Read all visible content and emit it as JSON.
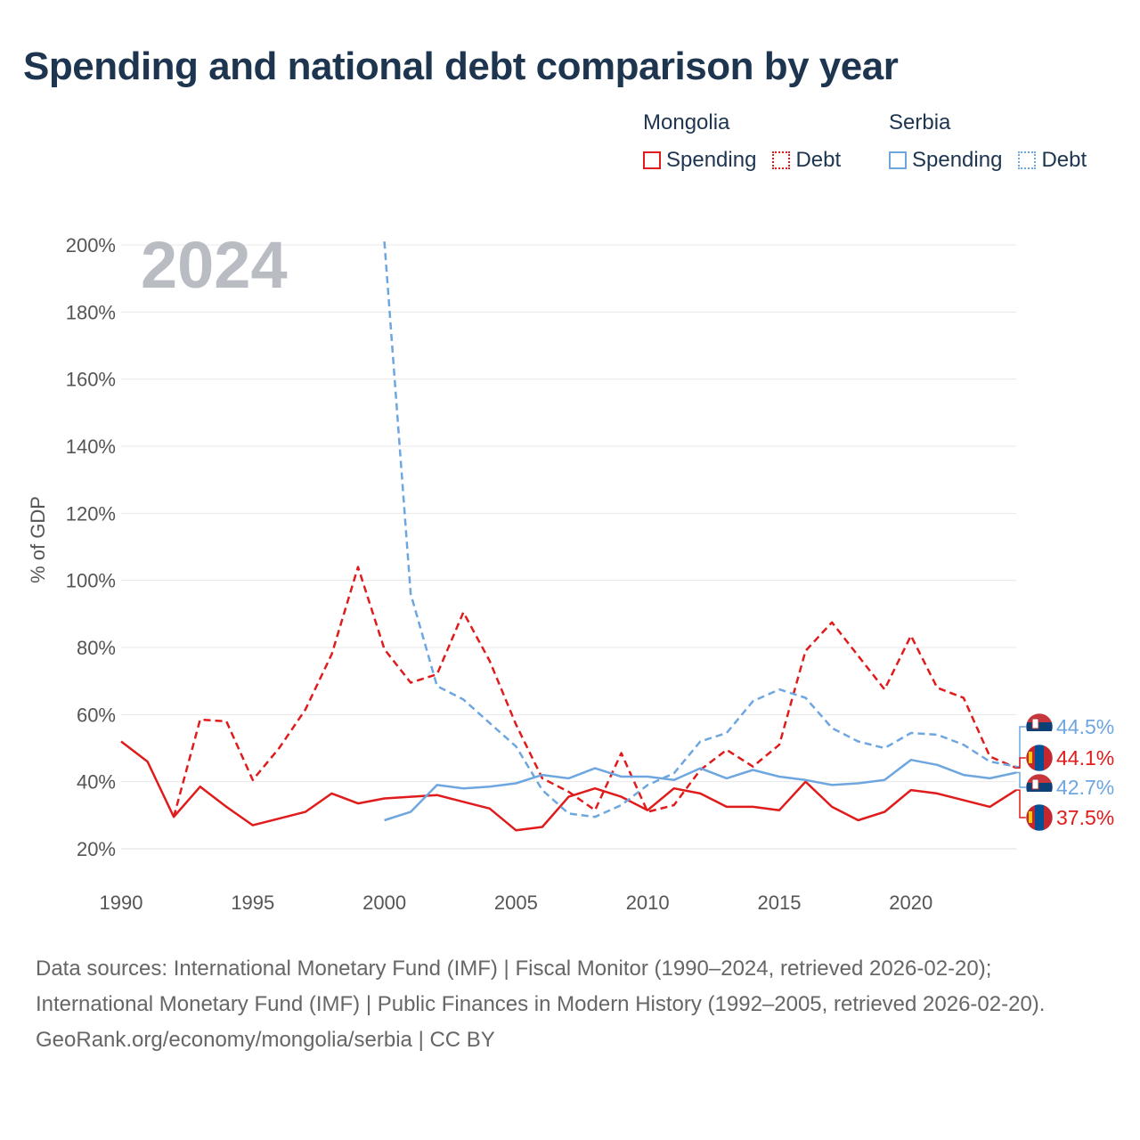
{
  "title": "Spending and national debt comparison by year",
  "legend": {
    "groups": [
      {
        "name": "Mongolia",
        "spending_label": "Spending",
        "debt_label": "Debt",
        "color": "#e01b1b"
      },
      {
        "name": "Serbia",
        "spending_label": "Spending",
        "debt_label": "Debt",
        "color": "#6ea6e0"
      }
    ]
  },
  "year_watermark": "2024",
  "flag_icons": {
    "mongolia": "mongolia-flag-icon",
    "serbia": "serbia-flag-icon"
  },
  "chart_data": {
    "type": "line",
    "title": "Spending and national debt comparison by year",
    "xlabel": "",
    "ylabel": "% of GDP",
    "xlim": [
      1990,
      2024
    ],
    "ylim": [
      20,
      200
    ],
    "x_ticks": [
      1990,
      1995,
      2000,
      2005,
      2010,
      2015,
      2020
    ],
    "x_tick_labels": [
      "1990",
      "1995",
      "2000",
      "2005",
      "2010",
      "2015",
      "2020"
    ],
    "y_ticks": [
      20,
      40,
      60,
      80,
      100,
      120,
      140,
      160,
      180,
      200
    ],
    "y_tick_labels": [
      "20%",
      "40%",
      "60%",
      "80%",
      "100%",
      "120%",
      "140%",
      "160%",
      "180%",
      "200%"
    ],
    "grid": true,
    "series": [
      {
        "name": "Mongolia Spending",
        "country": "Mongolia",
        "kind": "spending",
        "color": "#e01b1b",
        "dashed": false,
        "flag": "mongolia-flag-icon",
        "end_label": "37.5%",
        "x_start": 1990,
        "values": [
          52,
          46,
          29.5,
          38.5,
          32.5,
          27,
          29,
          31,
          36.5,
          33.5,
          35,
          35.5,
          36,
          34,
          32,
          25.5,
          26.5,
          35.5,
          38,
          35.5,
          31.5,
          38,
          36.5,
          32.5,
          32.5,
          31.5,
          40,
          32.5,
          28.5,
          31,
          37.5,
          36.5,
          34.5,
          32.5,
          37.5
        ]
      },
      {
        "name": "Mongolia Debt",
        "country": "Mongolia",
        "kind": "debt",
        "color": "#e01b1b",
        "dashed": true,
        "flag": "mongolia-flag-icon",
        "end_label": "44.1%",
        "x_start": 1992,
        "values": [
          29.5,
          58.5,
          58,
          40.5,
          50,
          61.5,
          78,
          104,
          79.5,
          69.5,
          72,
          90.5,
          76,
          57,
          41,
          37,
          31.5,
          48.5,
          31,
          33,
          43.5,
          49.5,
          44.5,
          51,
          79,
          87.5,
          77.5,
          67.5,
          83.5,
          68,
          65,
          47.5,
          44.1
        ]
      },
      {
        "name": "Serbia Spending",
        "country": "Serbia",
        "kind": "spending",
        "color": "#6ea6e0",
        "dashed": false,
        "flag": "serbia-flag-icon",
        "end_label": "42.7%",
        "x_start": 2000,
        "values": [
          28.5,
          31,
          39,
          38,
          38.5,
          39.5,
          42,
          41,
          44,
          41.5,
          41.5,
          40.5,
          44,
          41,
          43.5,
          41.5,
          40.5,
          39,
          39.5,
          40.5,
          46.5,
          45,
          42,
          41,
          42.7
        ]
      },
      {
        "name": "Serbia Debt",
        "country": "Serbia",
        "kind": "debt",
        "color": "#6ea6e0",
        "dashed": true,
        "flag": "serbia-flag-icon",
        "end_label": "44.5%",
        "x_start": 2000,
        "values": [
          201,
          96,
          68.5,
          64.5,
          57.5,
          50.5,
          37.5,
          30.5,
          29.5,
          33,
          39,
          42.5,
          52,
          54.5,
          64,
          67.5,
          65,
          56,
          52,
          50,
          54.5,
          54,
          51,
          46,
          44.5
        ]
      }
    ]
  },
  "footer": {
    "sources": "Data sources: International Monetary Fund (IMF) | Fiscal Monitor (1990–2024, retrieved 2026-02-20); International Monetary Fund (IMF) | Public Finances in Modern History (1992–2005, retrieved 2026-02-20).",
    "credit": "GeoRank.org/economy/mongolia/serbia | CC BY"
  }
}
